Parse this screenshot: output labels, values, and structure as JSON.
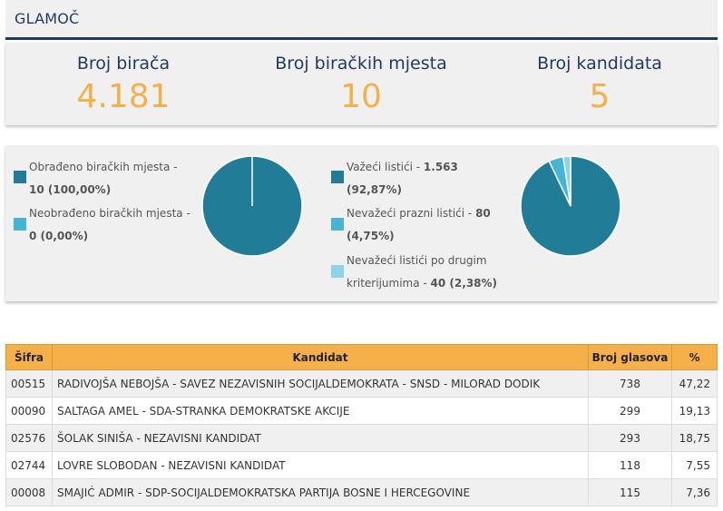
{
  "header": {
    "title": "GLAMOČ"
  },
  "stats": [
    {
      "label": "Broj birača",
      "value": "4.181"
    },
    {
      "label": "Broj biračkih mjesta",
      "value": "10"
    },
    {
      "label": "Broj kandidata",
      "value": "5"
    }
  ],
  "pie1": {
    "legend": [
      {
        "line1": "Obrađeno biračkih mjesta -",
        "line2": "10 (100,00%)",
        "color": "#217d97"
      },
      {
        "line1": "Neobrađeno biračkih mjesta -",
        "line2": "0 (0,00%)",
        "color": "#45b5d4"
      }
    ],
    "slices": [
      100.0,
      0.0
    ],
    "colors": [
      "#217d97",
      "#45b5d4"
    ]
  },
  "pie2": {
    "legend": [
      {
        "line1_text": "Važeći listići - ",
        "line1_bold": "1.563",
        "line2": "(92,87%)",
        "color": "#217d97"
      },
      {
        "line1_text": "Nevažeći prazni listići - ",
        "line1_bold": "80",
        "line2": "(4,75%)",
        "color": "#45b5d4"
      },
      {
        "line1_text": "Nevažeći listići po drugim",
        "line2_text": "kriterijumima - ",
        "line2_bold": "40 (2,38%)",
        "color": "#8fd3ea"
      }
    ],
    "slices": [
      92.87,
      4.75,
      2.38
    ],
    "colors": [
      "#217d97",
      "#45b5d4",
      "#8fd3ea"
    ]
  },
  "table": {
    "headers": {
      "code": "Šifra",
      "candidate": "Kandidat",
      "votes": "Broj glasova",
      "pct": "%"
    },
    "rows": [
      {
        "code": "00515",
        "candidate": "RADIVOJŠA NEBOJŠA - SAVEZ NEZAVISNIH SOCIJALDEMOKRATA - SNSD - MILORAD DODIK",
        "votes": "738",
        "pct": "47,22"
      },
      {
        "code": "00090",
        "candidate": "SALTAGA AMEL - SDA-STRANKA DEMOKRATSKE AKCIJE",
        "votes": "299",
        "pct": "19,13"
      },
      {
        "code": "02576",
        "candidate": "ŠOLAK SINIŠA - NEZAVISNI KANDIDAT",
        "votes": "293",
        "pct": "18,75"
      },
      {
        "code": "02744",
        "candidate": "LOVRE SLOBODAN - NEZAVISNI KANDIDAT",
        "votes": "118",
        "pct": "7,55"
      },
      {
        "code": "00008",
        "candidate": "SMAJIĆ ADMIR - SDP-SOCIJALDEMOKRATSKA PARTIJA BOSNE I HERCEGOVINE",
        "votes": "115",
        "pct": "7,36"
      }
    ]
  }
}
